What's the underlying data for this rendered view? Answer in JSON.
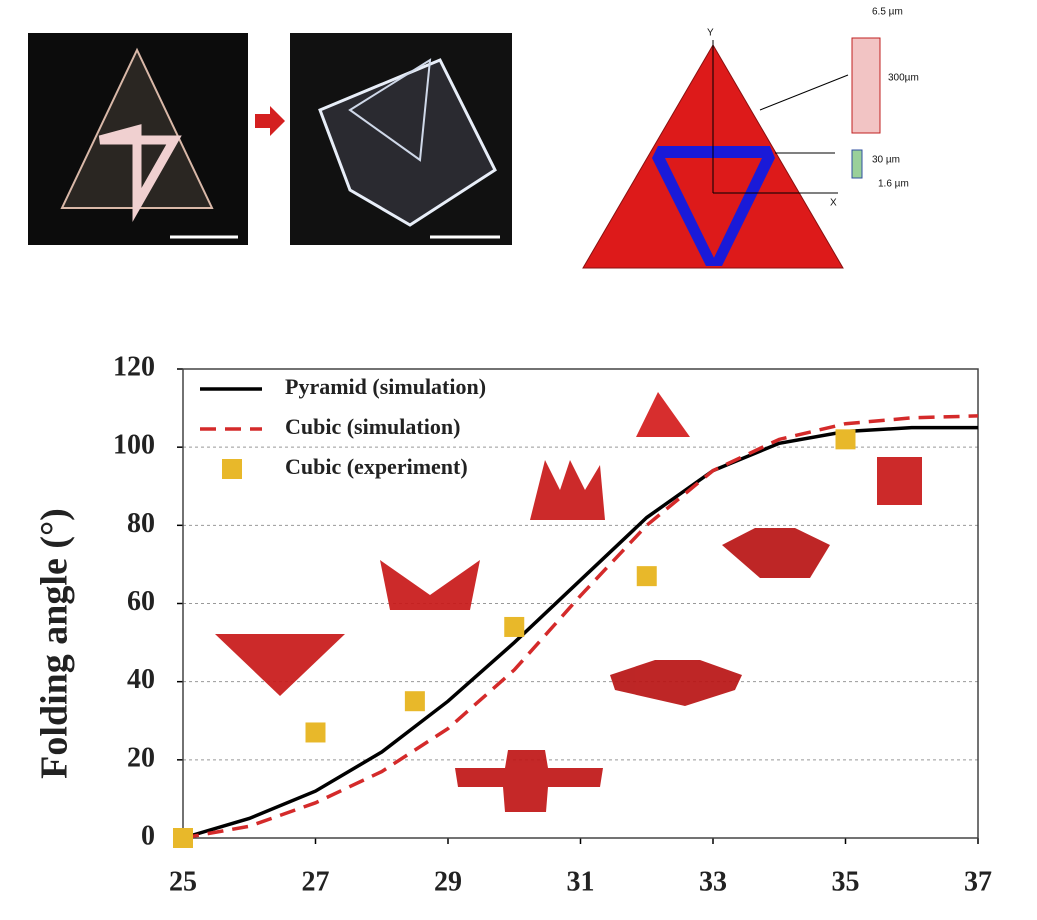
{
  "diagram": {
    "labels": {
      "y_axis": "Y",
      "x_axis": "X",
      "top_width": "6.5 µm",
      "top_height": "300µm",
      "hinge_height": "30 µm",
      "hinge_width": "1.6 µm"
    }
  },
  "chart_data": {
    "type": "line",
    "y_label": "Folding angle (°)",
    "xlim": [
      25,
      37
    ],
    "xticks": [
      25,
      27,
      29,
      31,
      33,
      35,
      37
    ],
    "ylim": [
      0,
      120
    ],
    "yticks": [
      0,
      20,
      40,
      60,
      80,
      100,
      120
    ],
    "grid": true,
    "legend": "top-left",
    "series": [
      {
        "name": "Pyramid (simulation)",
        "color": "#000000",
        "style": "solid",
        "x": [
          25,
          26,
          27,
          28,
          29,
          30,
          31,
          32,
          33,
          34,
          35,
          36,
          37
        ],
        "values": [
          0,
          5,
          12,
          22,
          35,
          50,
          66,
          82,
          94,
          101,
          104,
          105,
          105
        ]
      },
      {
        "name": "Cubic (simulation)",
        "color": "#d42a2a",
        "style": "dashed",
        "x": [
          25,
          26,
          27,
          28,
          29,
          30,
          31,
          32,
          33,
          34,
          35,
          36,
          37
        ],
        "values": [
          0,
          3,
          9,
          17,
          28,
          43,
          62,
          80,
          94,
          102,
          106,
          107.5,
          108
        ]
      },
      {
        "name": "Cubic (experiment)",
        "color": "#e8b82a",
        "style": "square",
        "x": [
          25,
          27,
          28.5,
          30,
          32,
          35
        ],
        "values": [
          0,
          27,
          35,
          54,
          67,
          102
        ]
      }
    ]
  }
}
